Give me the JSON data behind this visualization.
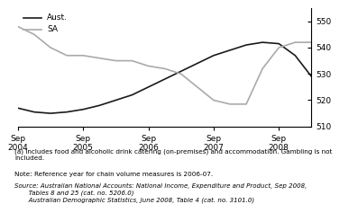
{
  "title": "",
  "ylim": [
    510,
    555
  ],
  "yticks": [
    510,
    520,
    530,
    540,
    550
  ],
  "xlim": [
    0,
    18
  ],
  "x_tick_positions": [
    0,
    4,
    8,
    12,
    16
  ],
  "x_tick_labels": [
    "Sep\n2004",
    "Sep\n2005",
    "Sep\n2006",
    "Sep\n2007",
    "Sep\n2008"
  ],
  "aust_color": "#1a1a1a",
  "sa_color": "#aaaaaa",
  "legend_aust": "Aust.",
  "legend_sa": "SA",
  "aust_x": [
    0,
    1,
    2,
    3,
    4,
    5,
    6,
    7,
    8,
    9,
    10,
    11,
    12,
    13,
    14,
    15,
    16,
    17,
    18
  ],
  "aust_y": [
    517,
    515.5,
    515,
    515.5,
    516.5,
    518,
    520,
    522,
    525,
    528,
    531,
    534,
    537,
    539,
    541,
    542,
    541.5,
    537,
    529
  ],
  "sa_x": [
    0,
    1,
    2,
    3,
    4,
    5,
    6,
    7,
    8,
    9,
    10,
    11,
    12,
    13,
    14,
    15,
    16,
    17,
    18
  ],
  "sa_y": [
    548,
    545,
    540,
    537,
    537,
    536,
    535,
    535,
    533,
    532,
    530,
    525,
    520,
    518.5,
    518.5,
    532,
    540,
    542,
    542
  ],
  "note1": "(a) Includes food and alcoholic drink catering (on-premises) and accommodation. Gambling is not\nincluded.",
  "note2": "Note: Reference year for chain volume measures is 2006-07.",
  "source": "Source: Australian National Accounts: National Income, Expenditure and Product, Sep 2008,\n       Tables 8 and 25 (cat. no. 5206.0)\n       Australian Demographic Statistics, June 2008, Table 4 (cat. no. 3101.0)"
}
